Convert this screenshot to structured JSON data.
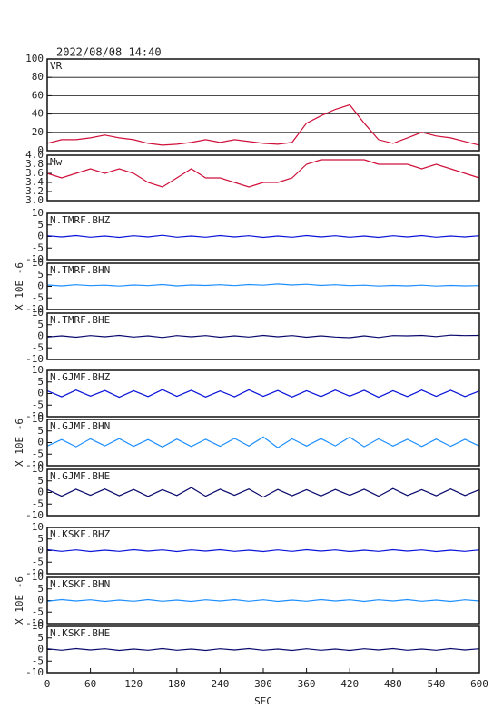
{
  "chart_data": [
    {
      "type": "line",
      "title": "2022/08/08 14:40",
      "label": "VR",
      "color": "#d0103a",
      "xlim": [
        0,
        600
      ],
      "x": [
        0,
        20,
        40,
        60,
        80,
        100,
        120,
        140,
        160,
        180,
        200,
        220,
        240,
        260,
        280,
        300,
        320,
        340,
        360,
        380,
        400,
        420,
        440,
        460,
        480,
        500,
        520,
        540,
        560,
        580,
        600
      ],
      "values": [
        8,
        12,
        12,
        14,
        17,
        14,
        12,
        8,
        6,
        7,
        9,
        12,
        9,
        12,
        10,
        8,
        7,
        9,
        30,
        38,
        45,
        50,
        30,
        12,
        8,
        14,
        20,
        16,
        14,
        10,
        6
      ],
      "ylim": [
        0,
        100
      ],
      "yticks": [
        0,
        20,
        40,
        60,
        80,
        100
      ],
      "grid": true
    },
    {
      "type": "line",
      "label": "Mw",
      "color": "#d0103a",
      "xlim": [
        0,
        600
      ],
      "x": [
        0,
        20,
        40,
        60,
        80,
        100,
        120,
        140,
        160,
        180,
        200,
        220,
        240,
        260,
        280,
        300,
        320,
        340,
        360,
        380,
        400,
        420,
        440,
        460,
        480,
        500,
        520,
        540,
        560,
        580,
        600
      ],
      "values": [
        3.6,
        3.5,
        3.6,
        3.7,
        3.6,
        3.7,
        3.6,
        3.4,
        3.3,
        3.5,
        3.7,
        3.5,
        3.5,
        3.4,
        3.3,
        3.4,
        3.4,
        3.5,
        3.8,
        3.9,
        3.9,
        3.9,
        3.9,
        3.8,
        3.8,
        3.8,
        3.7,
        3.8,
        3.7,
        3.6,
        3.5
      ],
      "ylim": [
        3,
        4
      ],
      "yticks": [
        {
          "value": 3,
          "label": "3.0"
        },
        3.2,
        3.4,
        3.6,
        3.8,
        {
          "value": 4,
          "label": "4.0"
        }
      ],
      "grid": false
    },
    {
      "type": "line",
      "label": "N.TMRF.BHZ",
      "color": "#0a14d8",
      "xlim": [
        0,
        600
      ],
      "x": [
        0,
        20,
        40,
        60,
        80,
        100,
        120,
        140,
        160,
        180,
        200,
        220,
        240,
        260,
        280,
        300,
        320,
        340,
        360,
        380,
        400,
        420,
        440,
        460,
        480,
        500,
        520,
        540,
        560,
        580,
        600
      ],
      "values": [
        0.3,
        -0.2,
        0.4,
        -0.3,
        0.2,
        -0.4,
        0.3,
        -0.2,
        0.5,
        -0.3,
        0.2,
        -0.3,
        0.4,
        -0.2,
        0.3,
        -0.4,
        0.2,
        -0.3,
        0.4,
        -0.2,
        0.3,
        -0.3,
        0.2,
        -0.4,
        0.3,
        -0.2,
        0.4,
        -0.3,
        0.2,
        -0.2,
        0.3
      ],
      "ylim": [
        -10,
        10
      ],
      "yticks": [
        -10,
        -5,
        0,
        5,
        10
      ]
    },
    {
      "type": "line",
      "label": "N.TMRF.BHN",
      "ylabel": "X 10E -6",
      "color": "#1e8fff",
      "xlim": [
        0,
        600
      ],
      "x": [
        0,
        20,
        40,
        60,
        80,
        100,
        120,
        140,
        160,
        180,
        200,
        220,
        240,
        260,
        280,
        300,
        320,
        340,
        360,
        380,
        400,
        420,
        440,
        460,
        480,
        500,
        520,
        540,
        560,
        580,
        600
      ],
      "values": [
        0.6,
        0.2,
        0.7,
        0.3,
        0.5,
        0.1,
        0.6,
        0.3,
        0.8,
        0.2,
        0.6,
        0.4,
        0.7,
        0.3,
        0.8,
        0.5,
        1.0,
        0.6,
        0.9,
        0.4,
        0.7,
        0.3,
        0.5,
        0.1,
        0.4,
        0.2,
        0.5,
        0.1,
        0.4,
        0.2,
        0.3
      ],
      "ylim": [
        -10,
        10
      ],
      "yticks": [
        -10,
        -5,
        0,
        5,
        10
      ]
    },
    {
      "type": "line",
      "label": "N.TMRF.BHE",
      "color": "#0a0a6e",
      "xlim": [
        0,
        600
      ],
      "x": [
        0,
        20,
        40,
        60,
        80,
        100,
        120,
        140,
        160,
        180,
        200,
        220,
        240,
        260,
        280,
        300,
        320,
        340,
        360,
        380,
        400,
        420,
        440,
        460,
        480,
        500,
        520,
        540,
        560,
        580,
        600
      ],
      "values": [
        -0.3,
        0.2,
        -0.4,
        0.3,
        -0.2,
        0.4,
        -0.3,
        0.2,
        -0.5,
        0.3,
        -0.2,
        0.3,
        -0.4,
        0.2,
        -0.3,
        0.4,
        -0.2,
        0.3,
        -0.4,
        0.2,
        -0.3,
        -0.6,
        0.2,
        -0.5,
        0.3,
        0.2,
        0.4,
        -0.1,
        0.5,
        0.3,
        0.4
      ],
      "ylim": [
        -10,
        10
      ],
      "yticks": [
        -10,
        -5,
        0,
        5,
        10
      ]
    },
    {
      "type": "line",
      "label": "N.GJMF.BHZ",
      "color": "#0a14d8",
      "xlim": [
        0,
        600
      ],
      "x": [
        0,
        20,
        40,
        60,
        80,
        100,
        120,
        140,
        160,
        180,
        200,
        220,
        240,
        260,
        280,
        300,
        320,
        340,
        360,
        380,
        400,
        420,
        440,
        460,
        480,
        500,
        520,
        540,
        560,
        580,
        600
      ],
      "values": [
        1.2,
        -1.4,
        1.5,
        -1.1,
        1.3,
        -1.6,
        1.2,
        -1.3,
        1.7,
        -1.2,
        1.4,
        -1.5,
        1.1,
        -1.4,
        1.6,
        -1.2,
        1.3,
        -1.5,
        1.2,
        -1.3,
        1.5,
        -1.1,
        1.4,
        -1.6,
        1.2,
        -1.3,
        1.5,
        -1.2,
        1.4,
        -1.3,
        1.1
      ],
      "ylim": [
        -10,
        10
      ],
      "yticks": [
        -10,
        -5,
        0,
        5,
        10
      ]
    },
    {
      "type": "line",
      "label": "N.GJMF.BHN",
      "ylabel": "X 10E -6",
      "color": "#1e8fff",
      "xlim": [
        0,
        600
      ],
      "x": [
        0,
        20,
        40,
        60,
        80,
        100,
        120,
        140,
        160,
        180,
        200,
        220,
        240,
        260,
        280,
        300,
        320,
        340,
        360,
        380,
        400,
        420,
        440,
        460,
        480,
        500,
        520,
        540,
        560,
        580,
        600
      ],
      "values": [
        -1.5,
        1.3,
        -1.8,
        1.6,
        -1.4,
        1.7,
        -1.6,
        1.3,
        -1.9,
        1.5,
        -1.7,
        1.4,
        -1.6,
        1.8,
        -1.5,
        2.4,
        -2.2,
        1.6,
        -1.5,
        1.7,
        -1.4,
        2.3,
        -1.8,
        1.6,
        -1.5,
        1.4,
        -1.7,
        1.5,
        -1.6,
        1.4,
        -1.5
      ],
      "ylim": [
        -10,
        10
      ],
      "yticks": [
        -10,
        -5,
        0,
        5,
        10
      ]
    },
    {
      "type": "line",
      "label": "N.GJMF.BHE",
      "color": "#0a0a6e",
      "xlim": [
        0,
        600
      ],
      "x": [
        0,
        20,
        40,
        60,
        80,
        100,
        120,
        140,
        160,
        180,
        200,
        220,
        240,
        260,
        280,
        300,
        320,
        340,
        360,
        380,
        400,
        420,
        440,
        460,
        480,
        500,
        520,
        540,
        560,
        580,
        600
      ],
      "values": [
        1.3,
        -1.6,
        1.4,
        -1.2,
        1.5,
        -1.4,
        1.3,
        -1.7,
        1.2,
        -1.3,
        2.1,
        -1.6,
        1.4,
        -1.2,
        1.5,
        -2.0,
        1.3,
        -1.4,
        1.2,
        -1.5,
        1.3,
        -1.2,
        1.4,
        -1.6,
        1.7,
        -1.3,
        1.2,
        -1.4,
        1.5,
        -1.3,
        1.2
      ],
      "ylim": [
        -10,
        10
      ],
      "yticks": [
        -10,
        -5,
        0,
        5,
        10
      ]
    },
    {
      "type": "line",
      "label": "N.KSKF.BHZ",
      "color": "#0a14d8",
      "xlim": [
        0,
        600
      ],
      "x": [
        0,
        20,
        40,
        60,
        80,
        100,
        120,
        140,
        160,
        180,
        200,
        220,
        240,
        260,
        280,
        300,
        320,
        340,
        360,
        380,
        400,
        420,
        440,
        460,
        480,
        500,
        520,
        540,
        560,
        580,
        600
      ],
      "values": [
        0.4,
        -0.3,
        0.3,
        -0.4,
        0.2,
        -0.3,
        0.4,
        -0.2,
        0.3,
        -0.4,
        0.3,
        -0.2,
        0.4,
        -0.3,
        0.2,
        -0.4,
        0.3,
        -0.3,
        0.4,
        -0.2,
        0.3,
        -0.4,
        0.2,
        -0.3,
        0.4,
        -0.2,
        0.3,
        -0.4,
        0.2,
        -0.3,
        0.3
      ],
      "ylim": [
        -10,
        10
      ],
      "yticks": [
        -10,
        -5,
        0,
        5,
        10
      ]
    },
    {
      "type": "line",
      "label": "N.KSKF.BHN",
      "ylabel": "X 10E -6",
      "color": "#1e8fff",
      "xlim": [
        0,
        600
      ],
      "x": [
        0,
        20,
        40,
        60,
        80,
        100,
        120,
        140,
        160,
        180,
        200,
        220,
        240,
        260,
        280,
        300,
        320,
        340,
        360,
        380,
        400,
        420,
        440,
        460,
        480,
        500,
        520,
        540,
        560,
        580,
        600
      ],
      "values": [
        -0.3,
        0.4,
        -0.2,
        0.3,
        -0.4,
        0.2,
        -0.3,
        0.4,
        -0.3,
        0.2,
        -0.4,
        0.3,
        -0.2,
        0.4,
        -0.3,
        0.3,
        -0.4,
        0.2,
        -0.3,
        0.4,
        -0.2,
        0.3,
        -0.4,
        0.3,
        -0.2,
        0.4,
        -0.3,
        0.2,
        -0.4,
        0.3,
        -0.2
      ],
      "ylim": [
        -10,
        10
      ],
      "yticks": [
        -10,
        -5,
        0,
        5,
        10
      ]
    },
    {
      "type": "line",
      "label": "N.KSKF.BHE",
      "xlabel": "SEC",
      "color": "#0a0a6e",
      "xlim": [
        0,
        600
      ],
      "x": [
        0,
        20,
        40,
        60,
        80,
        100,
        120,
        140,
        160,
        180,
        200,
        220,
        240,
        260,
        280,
        300,
        320,
        340,
        360,
        380,
        400,
        420,
        440,
        460,
        480,
        500,
        520,
        540,
        560,
        580,
        600
      ],
      "values": [
        0.3,
        -0.3,
        0.4,
        -0.2,
        0.3,
        -0.4,
        0.2,
        -0.3,
        0.4,
        -0.3,
        0.2,
        -0.4,
        0.3,
        -0.2,
        0.4,
        -0.3,
        0.2,
        -0.4,
        0.3,
        -0.3,
        0.2,
        -0.4,
        0.3,
        -0.2,
        0.4,
        -0.3,
        0.2,
        -0.3,
        0.4,
        -0.2,
        0.3
      ],
      "ylim": [
        -10,
        10
      ],
      "yticks": [
        -10,
        -5,
        0,
        5,
        10
      ],
      "xticks": [
        0,
        60,
        120,
        180,
        240,
        300,
        360,
        420,
        480,
        540,
        600
      ]
    }
  ]
}
